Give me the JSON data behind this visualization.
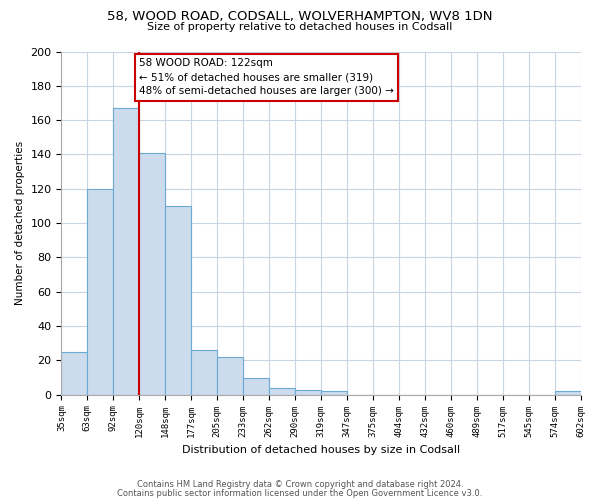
{
  "title": "58, WOOD ROAD, CODSALL, WOLVERHAMPTON, WV8 1DN",
  "subtitle": "Size of property relative to detached houses in Codsall",
  "xlabel": "Distribution of detached houses by size in Codsall",
  "ylabel": "Number of detached properties",
  "bar_values": [
    25,
    120,
    167,
    141,
    110,
    26,
    22,
    10,
    4,
    3,
    2,
    0,
    0,
    0,
    0,
    0,
    0,
    0,
    0,
    2
  ],
  "bar_labels": [
    "35sqm",
    "63sqm",
    "92sqm",
    "120sqm",
    "148sqm",
    "177sqm",
    "205sqm",
    "233sqm",
    "262sqm",
    "290sqm",
    "319sqm",
    "347sqm",
    "375sqm",
    "404sqm",
    "432sqm",
    "460sqm",
    "489sqm",
    "517sqm",
    "545sqm",
    "574sqm",
    "602sqm"
  ],
  "bar_color": "#ccdcec",
  "bar_edge_color": "#6aaad4",
  "vertical_line_x": 3,
  "vertical_line_color": "#cc0000",
  "annotation_title": "58 WOOD ROAD: 122sqm",
  "annotation_line2": "← 51% of detached houses are smaller (319)",
  "annotation_line3": "48% of semi-detached houses are larger (300) →",
  "annotation_box_color": "#ffffff",
  "annotation_box_edge": "#cc0000",
  "ylim": [
    0,
    200
  ],
  "yticks": [
    0,
    20,
    40,
    60,
    80,
    100,
    120,
    140,
    160,
    180,
    200
  ],
  "footer_line1": "Contains HM Land Registry data © Crown copyright and database right 2024.",
  "footer_line2": "Contains public sector information licensed under the Open Government Licence v3.0.",
  "bg_color": "#ffffff",
  "grid_color": "#c8d4e0"
}
